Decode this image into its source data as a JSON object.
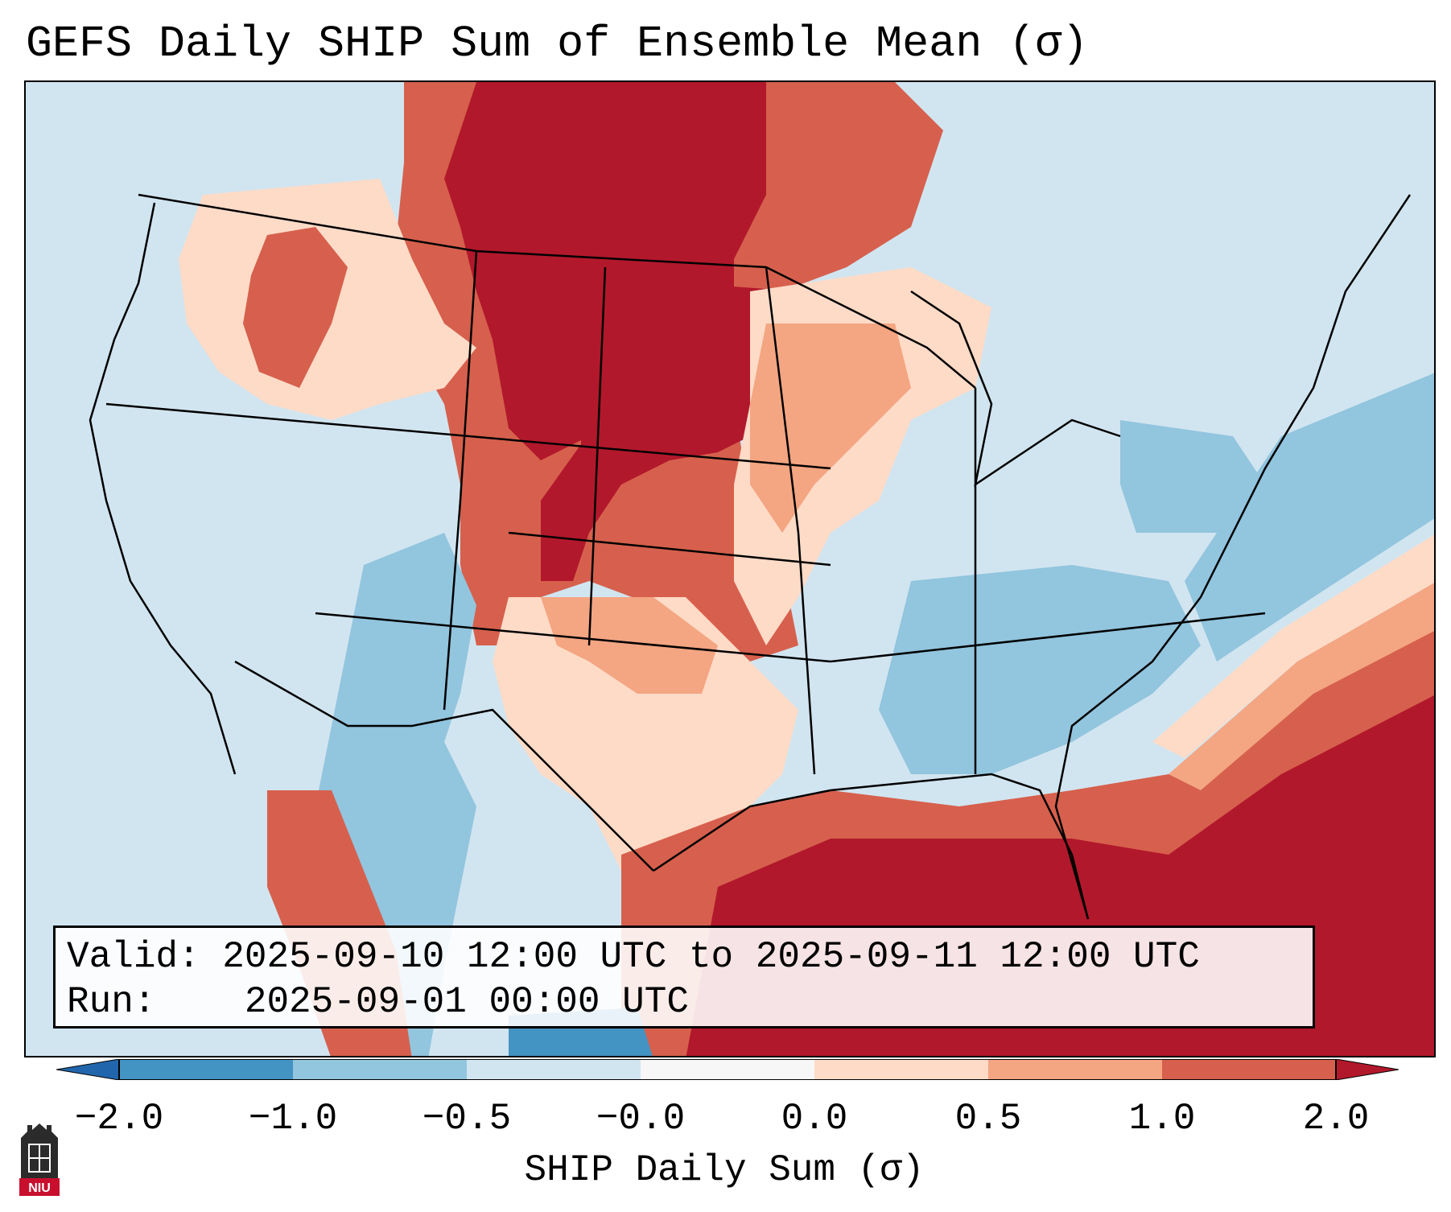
{
  "title": "GEFS Daily SHIP Sum of Ensemble Mean (σ)",
  "info": {
    "valid_label": "Valid:",
    "valid_value": "2025-09-10 12:00 UTC to 2025-09-11 12:00 UTC",
    "run_label": "Run:",
    "run_value": "2025-09-01 00:00 UTC"
  },
  "colorbar": {
    "label": "SHIP Daily Sum (σ)",
    "ticks": [
      "−2.0",
      "−1.0",
      "−0.5",
      "−0.0",
      "0.0",
      "0.5",
      "1.0",
      "2.0"
    ],
    "colors": [
      "#4393c3",
      "#92c5de",
      "#d1e5f0",
      "#f7f7f7",
      "#fddbc7",
      "#f4a582",
      "#d6604d"
    ],
    "under_color": "#2166ac",
    "over_color": "#b2182b"
  },
  "map_colors": {
    "ocean": "#d1e5f0",
    "very_high": "#b2182b",
    "high": "#d6604d",
    "mid_high": "#f4a582",
    "low_high": "#fddbc7",
    "low": "#92c5de",
    "very_low": "#4393c3",
    "neutral": "#f7f7f7"
  },
  "logo": {
    "text": "NIU",
    "icon": "niu-logo-icon"
  }
}
